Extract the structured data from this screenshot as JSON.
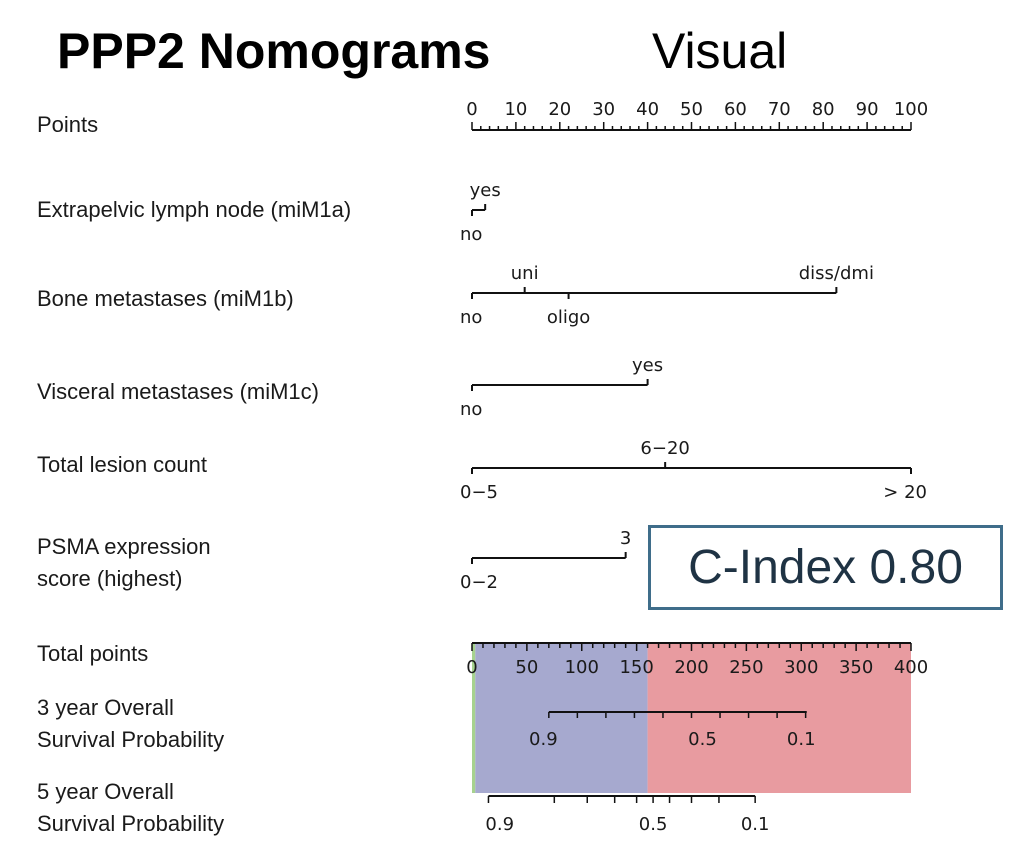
{
  "header": {
    "title": "PPP2 Nomograms",
    "subtitle": "Visual"
  },
  "rows": [
    {
      "label": "Points"
    },
    {
      "label": "Extrapelvic lymph node (miM1a)"
    },
    {
      "label": "Bone metastases (miM1b)"
    },
    {
      "label": "Visceral metastases (miM1c)"
    },
    {
      "label": "Total lesion count"
    },
    {
      "label": "PSMA expression"
    },
    {
      "label": "score (highest)"
    },
    {
      "label": "Total points"
    },
    {
      "label": "3 year Overall"
    },
    {
      "label": "Survival Probability"
    },
    {
      "label": "5 year Overall"
    },
    {
      "label": "Survival Probability"
    }
  ],
  "c_index": "C-Index 0.80",
  "colors": {
    "green": "#a6d28f",
    "blue": "#a6a9cf",
    "red": "#e89ba0",
    "box": "#3f6d8a"
  },
  "chart_data": {
    "type": "nomogram",
    "points_scale": {
      "range": [
        0,
        100
      ],
      "labeled_ticks": [
        0,
        10,
        20,
        30,
        40,
        50,
        60,
        70,
        80,
        90,
        100
      ]
    },
    "total_points_scale": {
      "range": [
        0,
        400
      ],
      "labeled_ticks": [
        0,
        50,
        100,
        150,
        200,
        250,
        300,
        350,
        400
      ]
    },
    "risk_bands": [
      {
        "from": 0,
        "to": 3,
        "color": "green"
      },
      {
        "from": 3,
        "to": 160,
        "color": "blue"
      },
      {
        "from": 160,
        "to": 400,
        "color": "red"
      }
    ],
    "predictors": [
      {
        "name": "Extrapelvic lymph node (miM1a)",
        "levels": [
          {
            "label": "no",
            "points": 0,
            "pos": "below"
          },
          {
            "label": "yes",
            "points": 3,
            "pos": "above"
          }
        ]
      },
      {
        "name": "Bone metastases (miM1b)",
        "levels": [
          {
            "label": "no",
            "points": 0,
            "pos": "below"
          },
          {
            "label": "uni",
            "points": 12,
            "pos": "above"
          },
          {
            "label": "oligo",
            "points": 22,
            "pos": "below"
          },
          {
            "label": "diss/dmi",
            "points": 83,
            "pos": "above"
          }
        ]
      },
      {
        "name": "Visceral metastases (miM1c)",
        "levels": [
          {
            "label": "no",
            "points": 0,
            "pos": "below"
          },
          {
            "label": "yes",
            "points": 40,
            "pos": "above"
          }
        ]
      },
      {
        "name": "Total lesion count",
        "levels": [
          {
            "label": "0−5",
            "points": 0,
            "pos": "below"
          },
          {
            "label": "6−20",
            "points": 44,
            "pos": "above"
          },
          {
            "label": "> 20",
            "points": 100,
            "pos": "below"
          }
        ]
      },
      {
        "name": "PSMA expression score (highest)",
        "levels": [
          {
            "label": "0−2",
            "points": 0,
            "pos": "below"
          },
          {
            "label": "3",
            "points": 35,
            "pos": "above"
          }
        ]
      }
    ],
    "survival_3yr": {
      "line_total_points": [
        70,
        305
      ],
      "labels": [
        {
          "label": "0.9",
          "total_points": 65
        },
        {
          "label": "0.5",
          "total_points": 210
        },
        {
          "label": "0.1",
          "total_points": 300
        }
      ]
    },
    "survival_5yr": {
      "line_total_points": [
        15,
        258
      ],
      "labels": [
        {
          "label": "0.9",
          "total_points": 18
        },
        {
          "label": "0.5",
          "total_points": 165
        },
        {
          "label": "0.1",
          "total_points": 258
        }
      ]
    }
  }
}
